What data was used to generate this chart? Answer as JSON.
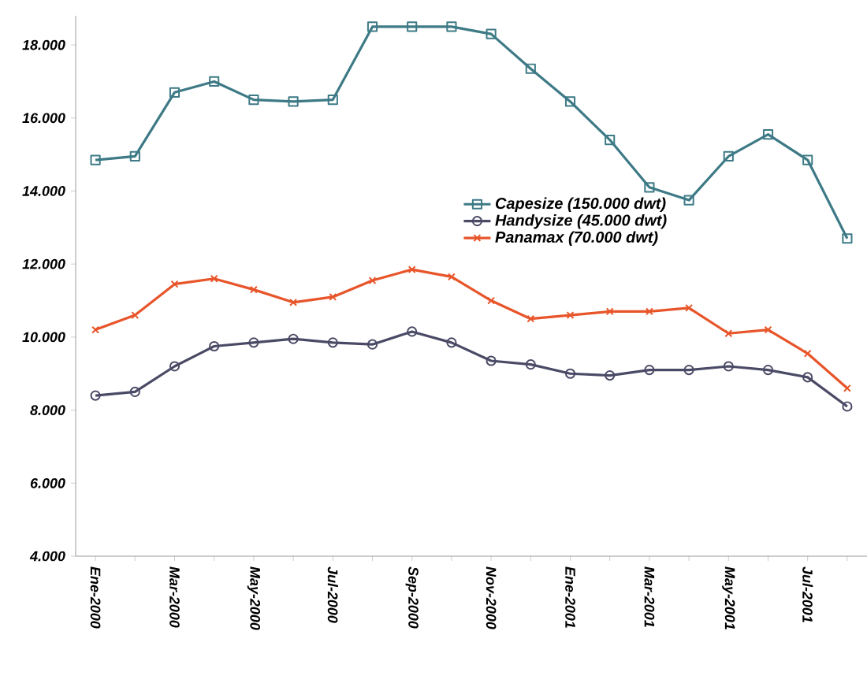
{
  "chart_data": {
    "type": "line",
    "categories": [
      "Ene-2000",
      null,
      "Mar-2000",
      null,
      "May-2000",
      null,
      "Jul-2000",
      null,
      "Sep-2000",
      null,
      "Nov-2000",
      null,
      "Ene-2001",
      null,
      "Mar-2001",
      null,
      "May-2001",
      null,
      "Jul-2001",
      null
    ],
    "series": [
      {
        "name": "Capesize (150.000 dwt)",
        "color": "#3d7a86",
        "marker": "square",
        "values": [
          14850,
          14950,
          16700,
          17000,
          16500,
          16450,
          16500,
          18500,
          18500,
          18500,
          18300,
          17350,
          16450,
          15400,
          14100,
          13750,
          14950,
          15550,
          14850,
          12700
        ]
      },
      {
        "name": "Handysize (45.000 dwt)",
        "color": "#4a4a66",
        "marker": "circle",
        "values": [
          8400,
          8500,
          9200,
          9750,
          9850,
          9950,
          9850,
          9800,
          10150,
          9850,
          9350,
          9250,
          9000,
          8950,
          9100,
          9100,
          9200,
          9100,
          8900,
          8100
        ]
      },
      {
        "name": "Panamax (70.000 dwt)",
        "color": "#e8552a",
        "marker": "cross",
        "values": [
          10200,
          10600,
          11450,
          11600,
          11300,
          10950,
          11100,
          11550,
          11850,
          11650,
          11000,
          10500,
          10600,
          10700,
          10700,
          10800,
          10100,
          10200,
          9550,
          8600
        ]
      }
    ],
    "ylim": [
      4000,
      18800
    ],
    "yticks": [
      {
        "value": 4000,
        "label": "4.000"
      },
      {
        "value": 6000,
        "label": "6.000"
      },
      {
        "value": 8000,
        "label": "8.000"
      },
      {
        "value": 10000,
        "label": "10.000"
      },
      {
        "value": 12000,
        "label": "12.000"
      },
      {
        "value": 14000,
        "label": "14.000"
      },
      {
        "value": 16000,
        "label": "16.000"
      },
      {
        "value": 18000,
        "label": "18.000"
      }
    ],
    "grid": false,
    "legend": "center",
    "line_style": "solid"
  }
}
